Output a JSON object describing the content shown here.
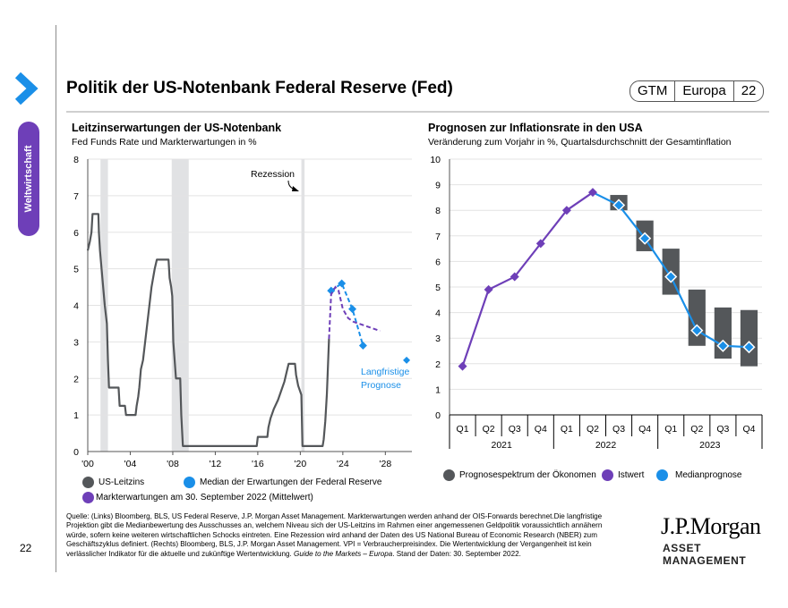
{
  "sidebar": {
    "section_label": "Weltwirtschaft",
    "page_number": "22"
  },
  "header": {
    "title": "Politik der US-Notenbank Federal Reserve (Fed)",
    "badge": [
      "GTM",
      "Europa",
      "22"
    ]
  },
  "left_chart": {
    "title": "Leitzinserwartungen der US-Notenbank",
    "subtitle": "Fed Funds Rate und Markterwartungen in %",
    "annotation_recession": "Rezession",
    "annotation_longrun": [
      "Langfristige",
      "Prognose"
    ],
    "legend": [
      "US-Leitzins",
      "Median der Erwartungen der Federal Reserve",
      "Markterwartungen am 30. September 2022 (Mittelwert)"
    ]
  },
  "right_chart": {
    "title": "Prognosen zur Inflationsrate in den USA",
    "subtitle": "Veränderung zum Vorjahr in %, Quartalsdurchschnitt der Gesamtinflation",
    "legend": [
      "Prognosespektrum der Ökonomen",
      "Istwert",
      "Medianprognose"
    ]
  },
  "footer": {
    "source": "Quelle: (Links) Bloomberg, BLS, US Federal Reserve, J.P. Morgan Asset Management. Markterwartungen werden anhand der OIS-Forwards berechnet.Die langfristige Projektion gibt die Medianbewertung des Ausschusses an, welchem Niveau sich der US-Leitzins im Rahmen einer angemessenen Geldpolitik voraussichtlich annähern würde, sofern keine weiteren wirtschaftlichen Schocks eintreten. Eine Rezession wird anhand der Daten des US National Bureau of Economic Research (NBER) zum Geschäftszyklus definiert. (Rechts) Bloomberg, BLS, J.P. Morgan Asset Management. VPI = Verbraucherpreisindex. Die Wertentwicklung der Vergangenheit ist kein verlässlicher Indikator für die aktuelle und zukünftige Wertentwicklung.",
    "source_italic": "Guide to the Markets – Europa",
    "source_end": ". Stand der Daten: 30. September 2022.",
    "logo_main": "J.P.Morgan",
    "logo_sub": "ASSET MANAGEMENT"
  },
  "colors": {
    "accent_blue": "#1a8fe8",
    "purple": "#6e3fb8",
    "dark_gray": "#54575a",
    "recession": "#e1e2e4"
  },
  "chart_data": [
    {
      "type": "line",
      "title": "Leitzinserwartungen der US-Notenbank",
      "ylabel": "Fed Funds Rate und Markterwartungen in %",
      "xlim": [
        2000,
        2030.5
      ],
      "ylim": [
        0,
        8
      ],
      "yticks": [
        0,
        1,
        2,
        3,
        4,
        5,
        6,
        7,
        8
      ],
      "xticks": [
        2000,
        2004,
        2008,
        2012,
        2016,
        2020,
        2024,
        2028
      ],
      "xtick_labels": [
        "'00",
        "'04",
        "'08",
        "'12",
        "'16",
        "'20",
        "'24",
        "'28"
      ],
      "grid": true,
      "recessions": [
        [
          2001.2,
          2001.9
        ],
        [
          2007.9,
          2009.5
        ],
        [
          2020.1,
          2020.4
        ]
      ],
      "series": [
        {
          "name": "US-Leitzins",
          "style": "solid",
          "color": "#54575a",
          "points": [
            [
              2000.0,
              5.5
            ],
            [
              2000.2,
              5.75
            ],
            [
              2000.35,
              6.0
            ],
            [
              2000.45,
              6.5
            ],
            [
              2001.0,
              6.5
            ],
            [
              2001.05,
              6.0
            ],
            [
              2001.15,
              5.5
            ],
            [
              2001.3,
              5.0
            ],
            [
              2001.45,
              4.5
            ],
            [
              2001.6,
              4.0
            ],
            [
              2001.7,
              3.75
            ],
            [
              2001.8,
              3.5
            ],
            [
              2001.9,
              2.5
            ],
            [
              2002.0,
              1.75
            ],
            [
              2002.9,
              1.75
            ],
            [
              2003.0,
              1.25
            ],
            [
              2003.5,
              1.25
            ],
            [
              2003.6,
              1.0
            ],
            [
              2004.5,
              1.0
            ],
            [
              2004.6,
              1.25
            ],
            [
              2004.75,
              1.5
            ],
            [
              2004.85,
              1.75
            ],
            [
              2005.0,
              2.25
            ],
            [
              2005.2,
              2.5
            ],
            [
              2005.4,
              3.0
            ],
            [
              2005.6,
              3.5
            ],
            [
              2005.8,
              4.0
            ],
            [
              2006.0,
              4.5
            ],
            [
              2006.3,
              5.0
            ],
            [
              2006.5,
              5.25
            ],
            [
              2007.6,
              5.25
            ],
            [
              2007.7,
              4.75
            ],
            [
              2007.85,
              4.5
            ],
            [
              2007.95,
              4.25
            ],
            [
              2008.05,
              3.0
            ],
            [
              2008.3,
              2.0
            ],
            [
              2008.7,
              2.0
            ],
            [
              2008.8,
              1.0
            ],
            [
              2008.95,
              0.15
            ],
            [
              2015.9,
              0.15
            ],
            [
              2016.0,
              0.4
            ],
            [
              2016.9,
              0.4
            ],
            [
              2017.0,
              0.66
            ],
            [
              2017.2,
              0.91
            ],
            [
              2017.5,
              1.16
            ],
            [
              2017.9,
              1.41
            ],
            [
              2018.2,
              1.66
            ],
            [
              2018.5,
              1.91
            ],
            [
              2018.7,
              2.16
            ],
            [
              2018.9,
              2.4
            ],
            [
              2019.5,
              2.4
            ],
            [
              2019.6,
              2.1
            ],
            [
              2019.8,
              1.8
            ],
            [
              2020.1,
              1.55
            ],
            [
              2020.2,
              0.15
            ],
            [
              2022.1,
              0.15
            ],
            [
              2022.2,
              0.33
            ],
            [
              2022.35,
              0.83
            ],
            [
              2022.5,
              1.58
            ],
            [
              2022.6,
              2.33
            ],
            [
              2022.7,
              3.08
            ]
          ]
        },
        {
          "name": "Median der Erwartungen der Federal Reserve",
          "style": "dashed",
          "color": "#1a8fe8",
          "points": [
            [
              2022.9,
              4.4
            ],
            [
              2023.9,
              4.6
            ],
            [
              2024.9,
              3.9
            ],
            [
              2025.9,
              2.9
            ]
          ]
        },
        {
          "name": "Langfristige Prognose",
          "style": "marker",
          "color": "#1a8fe8",
          "points": [
            [
              2030.0,
              2.5
            ]
          ]
        },
        {
          "name": "Markterwartungen am 30. September 2022 (Mittelwert)",
          "style": "dashed",
          "color": "#6e3fb8",
          "points": [
            [
              2022.7,
              3.08
            ],
            [
              2022.9,
              4.3
            ],
            [
              2023.3,
              4.5
            ],
            [
              2023.6,
              4.4
            ],
            [
              2024.0,
              3.9
            ],
            [
              2024.5,
              3.65
            ],
            [
              2025.0,
              3.55
            ],
            [
              2026.0,
              3.45
            ],
            [
              2027.5,
              3.3
            ]
          ]
        }
      ],
      "annotations": [
        "Rezession",
        "Langfristige Prognose"
      ],
      "legend_position": "bottom"
    },
    {
      "type": "line",
      "title": "Prognosen zur Inflationsrate in den USA",
      "ylabel": "Veränderung zum Vorjahr in %, Quartalsdurchschnitt der Gesamtinflation",
      "ylim": [
        0,
        10
      ],
      "yticks": [
        0,
        1,
        2,
        3,
        4,
        5,
        6,
        7,
        8,
        9,
        10
      ],
      "categories": [
        "Q1",
        "Q2",
        "Q3",
        "Q4",
        "Q1",
        "Q2",
        "Q3",
        "Q4",
        "Q1",
        "Q2",
        "Q3",
        "Q4"
      ],
      "groups": [
        "2021",
        "2022",
        "2023"
      ],
      "grid": true,
      "series": [
        {
          "name": "Istwert",
          "color": "#6e3fb8",
          "values": [
            1.9,
            4.9,
            5.4,
            6.7,
            8.0,
            8.7,
            null,
            null,
            null,
            null,
            null,
            null
          ]
        },
        {
          "name": "Medianprognose",
          "color": "#1a8fe8",
          "values": [
            null,
            null,
            null,
            null,
            null,
            8.7,
            8.2,
            6.9,
            5.4,
            3.3,
            2.7,
            2.65
          ]
        },
        {
          "name": "Prognosespektrum der Ökonomen",
          "color": "#54575a",
          "type": "range",
          "ranges": [
            null,
            null,
            null,
            null,
            null,
            null,
            [
              8.0,
              8.6
            ],
            [
              6.4,
              7.6
            ],
            [
              4.7,
              6.5
            ],
            [
              2.7,
              4.9
            ],
            [
              2.2,
              4.2
            ],
            [
              1.9,
              4.1
            ]
          ]
        }
      ],
      "legend_position": "bottom"
    }
  ]
}
